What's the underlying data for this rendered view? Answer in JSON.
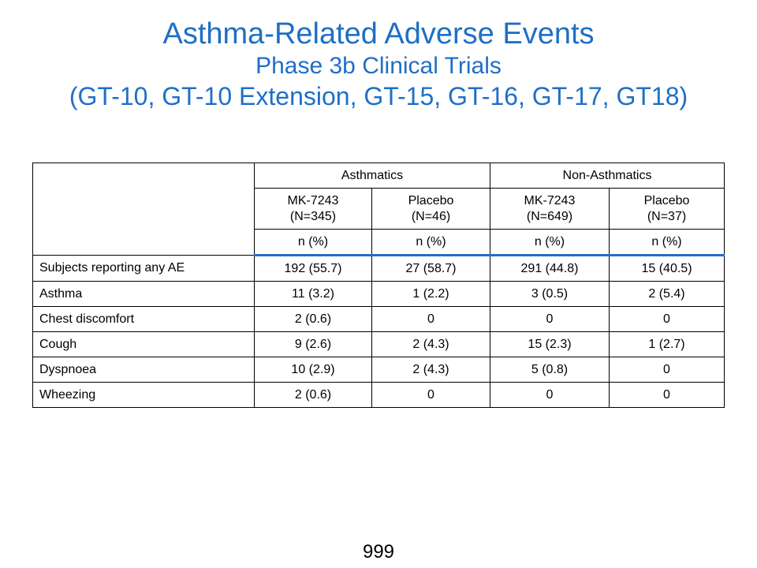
{
  "title": {
    "line1": "Asthma-Related Adverse Events",
    "line2": "Phase 3b Clinical Trials",
    "line3": "(GT-10, GT-10 Extension, GT-15, GT-16, GT-17, GT18)"
  },
  "table": {
    "groups": [
      "Asthmatics",
      "Non-Asthmatics"
    ],
    "arms": [
      {
        "name": "MK-7243",
        "n": "(N=345)"
      },
      {
        "name": "Placebo",
        "n": "(N=46)"
      },
      {
        "name": "MK-7243",
        "n": "(N=649)"
      },
      {
        "name": "Placebo",
        "n": "(N=37)"
      }
    ],
    "unit": "n (%)",
    "rows": [
      {
        "label": "Subjects reporting any AE",
        "values": [
          "192 (55.7)",
          "27 (58.7)",
          "291 (44.8)",
          "15 (40.5)"
        ]
      },
      {
        "label": "Asthma",
        "values": [
          "11 (3.2)",
          "1 (2.2)",
          "3 (0.5)",
          "2 (5.4)"
        ]
      },
      {
        "label": "Chest discomfort",
        "values": [
          "2 (0.6)",
          "0",
          "0",
          "0"
        ]
      },
      {
        "label": "Cough",
        "values": [
          "9 (2.6)",
          "2 (4.3)",
          "15 (2.3)",
          "1 (2.7)"
        ]
      },
      {
        "label": "Dyspnoea",
        "values": [
          "10 (2.9)",
          "2 (4.3)",
          "5 (0.8)",
          "0"
        ]
      },
      {
        "label": "Wheezing",
        "values": [
          "2 (0.6)",
          "0",
          "0",
          "0"
        ]
      }
    ]
  },
  "page_number": "999",
  "colors": {
    "title": "#1f6fc5",
    "header_rule": "#1f6fc5"
  }
}
